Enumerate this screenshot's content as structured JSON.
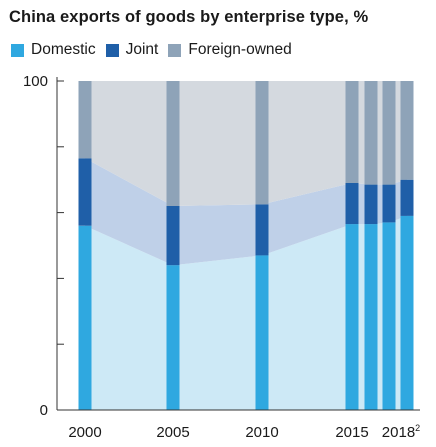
{
  "chart_data": {
    "type": "bar",
    "title": "China exports of goods by enterprise type, %",
    "xlabel": "",
    "ylabel": "",
    "ylim": [
      0,
      100
    ],
    "y_ticks": [
      0,
      20,
      40,
      60,
      80,
      100
    ],
    "y_tick_labels": [
      "0",
      "",
      "",
      "",
      "",
      "100"
    ],
    "categories": [
      "2000",
      "2005",
      "2010",
      "2015",
      "2016",
      "2017",
      "2018"
    ],
    "x_tick_labels": [
      "2000",
      "2005",
      "2010",
      "2015",
      "2018"
    ],
    "x_tick_footnote": "2",
    "stacked": true,
    "series": [
      {
        "name": "Domestic",
        "color": "#2fa8e0",
        "values": [
          56,
          44,
          47,
          56.5,
          56.5,
          57,
          59
        ]
      },
      {
        "name": "Joint",
        "color": "#1f5fa8",
        "values": [
          20.5,
          18,
          15.5,
          12.5,
          12,
          11.5,
          11
        ]
      },
      {
        "name": "Foreign-owned",
        "color": "#8ea3b8",
        "values": [
          23.5,
          38,
          37.5,
          31,
          31.5,
          31.5,
          30
        ]
      }
    ],
    "band_colors": [
      "#cde9f6",
      "#bfd0e8",
      "#d4d9df"
    ],
    "grid": false,
    "legend_position": "top-left"
  }
}
